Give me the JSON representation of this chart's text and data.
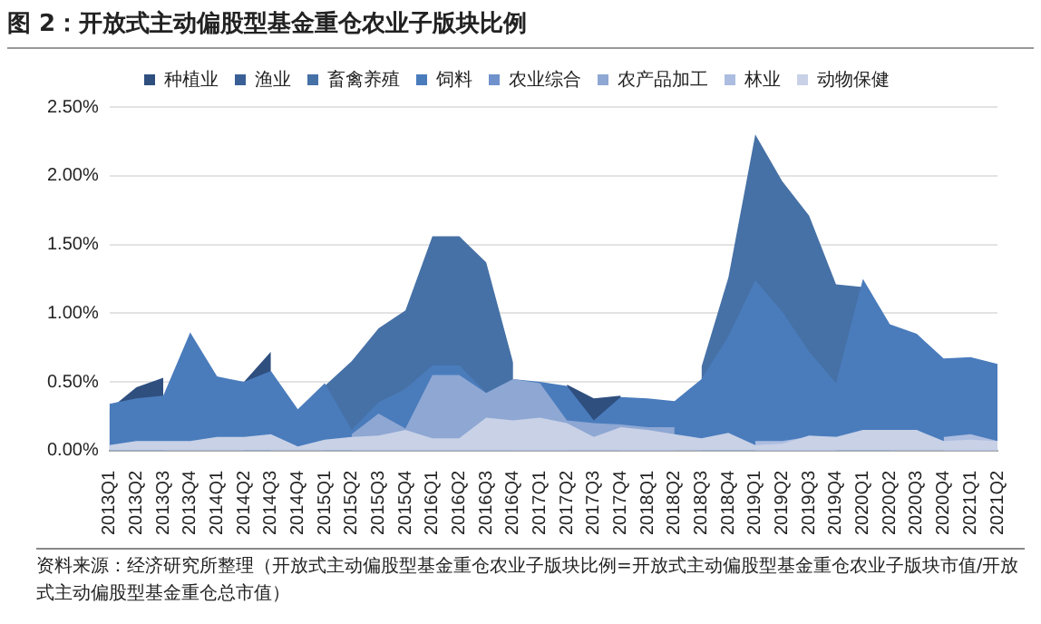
{
  "chart_data": {
    "type": "area",
    "title": "图 2：开放式主动偏股型基金重仓农业子版块比例",
    "categories": [
      "2013Q1",
      "2013Q2",
      "2013Q3",
      "2013Q4",
      "2014Q1",
      "2014Q2",
      "2014Q3",
      "2014Q4",
      "2015Q1",
      "2015Q2",
      "2015Q3",
      "2015Q4",
      "2016Q1",
      "2016Q2",
      "2016Q3",
      "2016Q4",
      "2017Q1",
      "2017Q2",
      "2017Q3",
      "2017Q4",
      "2018Q1",
      "2018Q2",
      "2018Q3",
      "2018Q4",
      "2019Q1",
      "2019Q2",
      "2019Q3",
      "2019Q4",
      "2020Q1",
      "2020Q2",
      "2020Q3",
      "2020Q4",
      "2021Q1",
      "2021Q2"
    ],
    "series": [
      {
        "name": "种植业",
        "color": "#2f4f7f",
        "values": [
          0.3,
          0.46,
          0.53,
          null,
          null,
          0.5,
          0.72,
          null,
          null,
          null,
          null,
          null,
          null,
          null,
          null,
          null,
          null,
          0.48,
          0.38,
          0.4,
          null,
          null,
          null,
          null,
          null,
          null,
          null,
          null,
          null,
          null,
          null,
          null,
          null,
          null
        ]
      },
      {
        "name": "渔业",
        "color": "#3a5f96",
        "values": [
          null,
          null,
          null,
          null,
          null,
          null,
          null,
          null,
          null,
          null,
          null,
          null,
          null,
          null,
          null,
          null,
          null,
          null,
          null,
          null,
          null,
          null,
          null,
          null,
          null,
          null,
          null,
          null,
          null,
          null,
          null,
          null,
          null,
          null
        ]
      },
      {
        "name": "畜禽养殖",
        "color": "#4671a6",
        "values": [
          null,
          null,
          null,
          null,
          null,
          null,
          null,
          null,
          0.47,
          0.65,
          0.89,
          1.02,
          1.56,
          1.56,
          1.37,
          0.64,
          null,
          null,
          null,
          null,
          null,
          null,
          0.61,
          1.26,
          2.3,
          1.96,
          1.71,
          1.21,
          1.19,
          0.9,
          null,
          null,
          null,
          null
        ]
      },
      {
        "name": "饲料",
        "color": "#4a7cbc",
        "values": [
          0.34,
          0.38,
          0.4,
          0.86,
          0.54,
          0.5,
          0.58,
          0.3,
          0.49,
          0.15,
          0.35,
          0.45,
          0.62,
          0.62,
          0.42,
          0.52,
          0.5,
          0.47,
          0.22,
          0.39,
          0.38,
          0.36,
          0.52,
          0.83,
          1.24,
          1.01,
          0.72,
          0.49,
          1.25,
          0.92,
          0.85,
          0.67,
          0.68,
          0.63
        ]
      },
      {
        "name": "农业综合",
        "color": "#6f92cc",
        "values": [
          null,
          null,
          null,
          null,
          null,
          null,
          null,
          null,
          null,
          null,
          null,
          null,
          null,
          null,
          null,
          null,
          null,
          null,
          null,
          null,
          null,
          null,
          null,
          null,
          null,
          null,
          null,
          null,
          null,
          null,
          null,
          null,
          null,
          null
        ]
      },
      {
        "name": "农产品加工",
        "color": "#8ea7d3",
        "values": [
          null,
          null,
          null,
          null,
          null,
          null,
          null,
          null,
          null,
          0.12,
          0.27,
          0.16,
          0.55,
          0.55,
          0.42,
          0.52,
          0.49,
          0.22,
          0.2,
          0.19,
          0.17,
          0.17,
          null,
          null,
          null,
          null,
          null,
          null,
          null,
          null,
          null,
          null,
          null,
          null
        ]
      },
      {
        "name": "林业",
        "color": "#acbde0",
        "values": [
          null,
          null,
          null,
          null,
          null,
          null,
          null,
          null,
          null,
          null,
          null,
          null,
          null,
          null,
          null,
          null,
          null,
          null,
          null,
          null,
          null,
          null,
          null,
          null,
          0.07,
          0.07,
          0.1,
          0.1,
          null,
          null,
          null,
          0.1,
          0.12,
          0.07
        ]
      },
      {
        "name": "动物保健",
        "color": "#c8d1e6",
        "values": [
          0.04,
          0.07,
          0.07,
          0.07,
          0.1,
          0.1,
          0.12,
          0.03,
          0.08,
          0.1,
          0.11,
          0.15,
          0.09,
          0.09,
          0.24,
          0.22,
          0.24,
          0.2,
          0.1,
          0.17,
          0.15,
          0.12,
          0.09,
          0.13,
          0.04,
          0.05,
          0.11,
          0.1,
          0.15,
          0.15,
          0.15,
          0.07,
          0.08,
          0.07
        ]
      }
    ],
    "ylim": [
      0,
      2.5
    ],
    "yticks": [
      {
        "value": 0,
        "label": "0.00%"
      },
      {
        "value": 0.5,
        "label": "0.50%"
      },
      {
        "value": 1,
        "label": "1.00%"
      },
      {
        "value": 1.5,
        "label": "1.50%"
      },
      {
        "value": 2,
        "label": "2.00%"
      },
      {
        "value": 2.5,
        "label": "2.50%"
      }
    ],
    "grid": "y",
    "legend": "top",
    "annotations": [
      "资料来源：经济研究所整理（开放式主动偏股型基金重仓农业子版块比例=开放式主动偏股型基金重仓农业子版块市值/开放式主动偏股型基金重仓总市值）"
    ]
  }
}
